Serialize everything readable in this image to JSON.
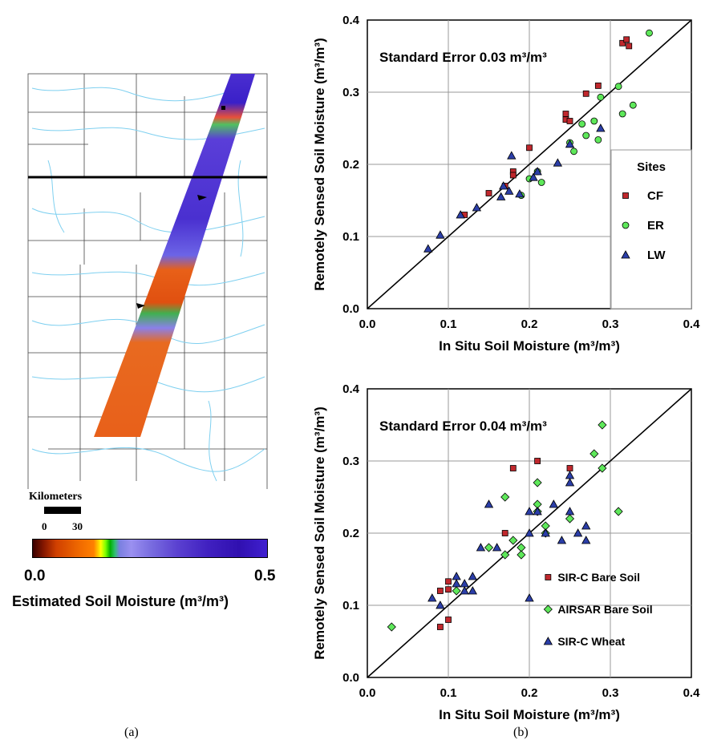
{
  "map": {
    "scale_label": "Kilometers",
    "scale_min": "0",
    "scale_max": "30",
    "colorbar_min": "0.0",
    "colorbar_max": "0.5",
    "colorbar_title": "Estimated Soil Moisture (m³/m³)",
    "caption": "(a)"
  },
  "figure_b_caption": "(b)",
  "chart_data": [
    {
      "type": "scatter",
      "title": "Standard Error 0.03 m³/m³",
      "xlabel": "In Situ Soil Moisture (m³/m³)",
      "ylabel": "Remotely Sensed Soil Moisture (m³/m³)",
      "xlim": [
        0.0,
        0.4
      ],
      "ylim": [
        0.0,
        0.4
      ],
      "x_ticks": [
        "0.0",
        "0.1",
        "0.2",
        "0.3",
        "0.4"
      ],
      "y_ticks": [
        "0.0",
        "0.1",
        "0.2",
        "0.3",
        "0.4"
      ],
      "grid": true,
      "legend_title": "Sites",
      "legend_position": "right",
      "series": [
        {
          "name": "CF",
          "marker": "square",
          "color": "#c0282d",
          "points": [
            [
              0.12,
              0.13
            ],
            [
              0.15,
              0.16
            ],
            [
              0.17,
              0.17
            ],
            [
              0.18,
              0.19
            ],
            [
              0.18,
              0.185
            ],
            [
              0.2,
              0.223
            ],
            [
              0.245,
              0.27
            ],
            [
              0.245,
              0.262
            ],
            [
              0.25,
              0.26
            ],
            [
              0.27,
              0.298
            ],
            [
              0.285,
              0.309
            ],
            [
              0.315,
              0.368
            ],
            [
              0.32,
              0.373
            ],
            [
              0.323,
              0.364
            ]
          ]
        },
        {
          "name": "ER",
          "marker": "circle",
          "color": "#5ee85a",
          "points": [
            [
              0.19,
              0.157
            ],
            [
              0.2,
              0.18
            ],
            [
              0.21,
              0.19
            ],
            [
              0.215,
              0.175
            ],
            [
              0.25,
              0.23
            ],
            [
              0.255,
              0.218
            ],
            [
              0.265,
              0.256
            ],
            [
              0.27,
              0.24
            ],
            [
              0.28,
              0.26
            ],
            [
              0.285,
              0.234
            ],
            [
              0.288,
              0.293
            ],
            [
              0.31,
              0.308
            ],
            [
              0.315,
              0.27
            ],
            [
              0.328,
              0.282
            ],
            [
              0.348,
              0.382
            ]
          ]
        },
        {
          "name": "LW",
          "marker": "triangle",
          "color": "#2b3ea8",
          "points": [
            [
              0.075,
              0.083
            ],
            [
              0.09,
              0.102
            ],
            [
              0.115,
              0.13
            ],
            [
              0.135,
              0.14
            ],
            [
              0.165,
              0.155
            ],
            [
              0.168,
              0.17
            ],
            [
              0.175,
              0.163
            ],
            [
              0.178,
              0.212
            ],
            [
              0.188,
              0.159
            ],
            [
              0.205,
              0.182
            ],
            [
              0.21,
              0.19
            ],
            [
              0.235,
              0.202
            ],
            [
              0.25,
              0.228
            ],
            [
              0.288,
              0.25
            ]
          ]
        }
      ]
    },
    {
      "type": "scatter",
      "title": "Standard Error 0.04 m³/m³",
      "xlabel": "In Situ Soil Moisture (m³/m³)",
      "ylabel": "Remotely Sensed Soil Moisture (m³/m³)",
      "xlim": [
        0.0,
        0.4
      ],
      "ylim": [
        0.0,
        0.4
      ],
      "x_ticks": [
        "0.0",
        "0.1",
        "0.2",
        "0.3",
        "0.4"
      ],
      "y_ticks": [
        "0.0",
        "0.1",
        "0.2",
        "0.3",
        "0.4"
      ],
      "grid": true,
      "legend_position": "bottom-right",
      "series": [
        {
          "name": "SIR-C Bare Soil",
          "marker": "square",
          "color": "#c0282d",
          "points": [
            [
              0.09,
              0.12
            ],
            [
              0.09,
              0.07
            ],
            [
              0.1,
              0.133
            ],
            [
              0.1,
              0.122
            ],
            [
              0.1,
              0.08
            ],
            [
              0.17,
              0.2
            ],
            [
              0.18,
              0.29
            ],
            [
              0.21,
              0.3
            ],
            [
              0.25,
              0.29
            ]
          ]
        },
        {
          "name": "AIRSAR Bare Soil",
          "marker": "diamond",
          "color": "#5ee85a",
          "points": [
            [
              0.03,
              0.07
            ],
            [
              0.11,
              0.12
            ],
            [
              0.15,
              0.18
            ],
            [
              0.17,
              0.25
            ],
            [
              0.17,
              0.17
            ],
            [
              0.18,
              0.19
            ],
            [
              0.19,
              0.18
            ],
            [
              0.19,
              0.17
            ],
            [
              0.21,
              0.27
            ],
            [
              0.21,
              0.24
            ],
            [
              0.21,
              0.23
            ],
            [
              0.22,
              0.2
            ],
            [
              0.22,
              0.21
            ],
            [
              0.25,
              0.22
            ],
            [
              0.28,
              0.31
            ],
            [
              0.29,
              0.35
            ],
            [
              0.29,
              0.29
            ],
            [
              0.31,
              0.23
            ]
          ]
        },
        {
          "name": "SIR-C Wheat",
          "marker": "triangle",
          "color": "#2b3ea8",
          "points": [
            [
              0.08,
              0.11
            ],
            [
              0.09,
              0.1
            ],
            [
              0.11,
              0.14
            ],
            [
              0.11,
              0.13
            ],
            [
              0.12,
              0.13
            ],
            [
              0.12,
              0.12
            ],
            [
              0.13,
              0.14
            ],
            [
              0.13,
              0.12
            ],
            [
              0.14,
              0.18
            ],
            [
              0.15,
              0.24
            ],
            [
              0.16,
              0.18
            ],
            [
              0.2,
              0.23
            ],
            [
              0.2,
              0.2
            ],
            [
              0.2,
              0.11
            ],
            [
              0.21,
              0.23
            ],
            [
              0.22,
              0.2
            ],
            [
              0.23,
              0.24
            ],
            [
              0.24,
              0.19
            ],
            [
              0.25,
              0.28
            ],
            [
              0.25,
              0.27
            ],
            [
              0.25,
              0.23
            ],
            [
              0.26,
              0.2
            ],
            [
              0.27,
              0.21
            ],
            [
              0.27,
              0.19
            ]
          ]
        }
      ]
    }
  ]
}
